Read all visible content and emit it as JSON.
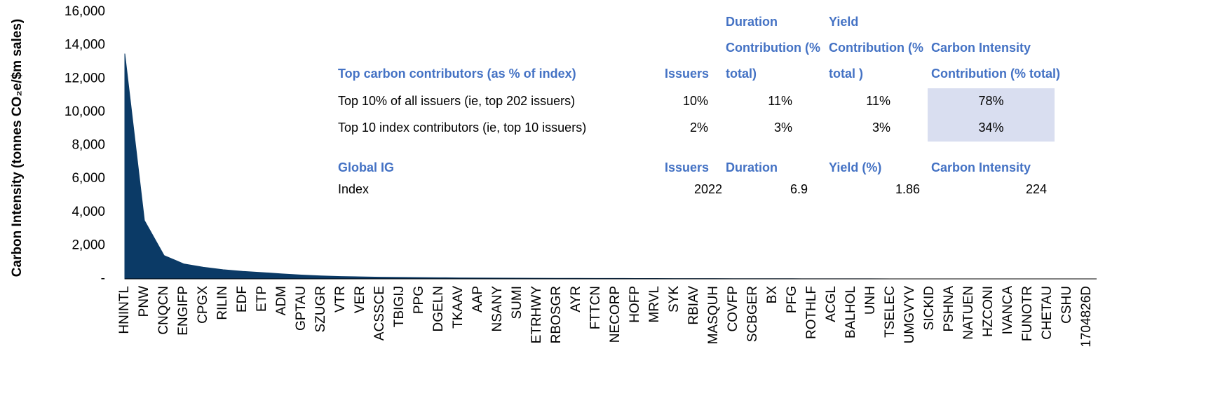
{
  "chart_data": {
    "type": "area",
    "y_label": "Carbon Intensity (tonnes CO₂e/$m sales)",
    "color": "#0b3a66",
    "categories": [
      "HNINTL",
      "PNW",
      "CNQCN",
      "ENGIFP",
      "CPGX",
      "RILIN",
      "EDF",
      "ETP",
      "ADM",
      "GPTAU",
      "SZUGR",
      "VTR",
      "VER",
      "ACSSCE",
      "TBIGIJ",
      "PPG",
      "DGELN",
      "TKAAV",
      "AAP",
      "NSANY",
      "SUMI",
      "ETRHWY",
      "RBOSGR",
      "AYR",
      "FTTCN",
      "NECORP",
      "HOFP",
      "MRVL",
      "SYK",
      "RBIAV",
      "MASQUH",
      "COVFP",
      "SCBGER",
      "BX",
      "PFG",
      "ROTHLF",
      "ACGL",
      "BALHOL",
      "UNH",
      "TSELEC",
      "UMGVYV",
      "SICKID",
      "PSHNA",
      "NATUEN",
      "HZCONI",
      "IVANCA",
      "FUNOTR",
      "CHETAU",
      "CSHU",
      "1704826D"
    ],
    "values": [
      13500,
      3500,
      1400,
      900,
      700,
      550,
      450,
      380,
      300,
      230,
      180,
      140,
      120,
      100,
      90,
      80,
      70,
      60,
      50,
      45,
      40,
      35,
      32,
      30,
      27,
      25,
      22,
      20,
      18,
      16,
      14,
      12,
      10,
      9,
      8,
      6,
      5,
      4,
      3,
      2,
      null,
      null,
      null,
      null,
      null,
      null,
      null,
      null,
      null,
      null
    ],
    "ylim": [
      0,
      16000
    ],
    "yticks": [
      {
        "value": 0,
        "label": "-"
      },
      {
        "value": 2000,
        "label": "2,000"
      },
      {
        "value": 4000,
        "label": "4,000"
      },
      {
        "value": 6000,
        "label": "6,000"
      },
      {
        "value": 8000,
        "label": "8,000"
      },
      {
        "value": 10000,
        "label": "10,000"
      },
      {
        "value": 12000,
        "label": "12,000"
      },
      {
        "value": 14000,
        "label": "14,000"
      },
      {
        "value": 16000,
        "label": "16,000"
      }
    ]
  },
  "table": {
    "header": [
      "Top carbon contributors (as % of index)",
      "Issuers",
      "Duration Contribution (% total)",
      "Yield Contribution (% total )",
      "Carbon Intensity Contribution (% total)"
    ],
    "rows": [
      [
        "Top 10% of all issuers (ie, top 202 issuers)",
        "10%",
        "11%",
        "11%",
        "78%"
      ],
      [
        "Top 10 index contributors (ie, top 10 issuers)",
        "2%",
        "3%",
        "3%",
        "34%"
      ]
    ],
    "header2": [
      "Global IG",
      "Issuers",
      "Duration",
      "Yield (%)",
      "Carbon Intensity"
    ],
    "rows2": [
      [
        "Index",
        "2022",
        "6.9",
        "1.86",
        "224"
      ]
    ]
  }
}
